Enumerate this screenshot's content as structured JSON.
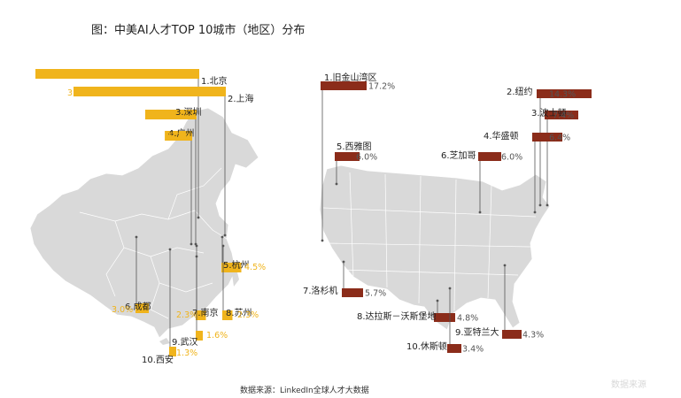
{
  "title": "图：中美AI人才TOP 10城市（地区）分布",
  "source": "数据来源：LinkedIn全球人才大数据",
  "colors": {
    "china": "#f0b41c",
    "china_text": "#f0b41c",
    "usa": "#8b2c1a",
    "usa_text": "#555555",
    "map": "#d9d9d9",
    "leader": "#555555"
  },
  "chart_data": [
    {
      "type": "bar",
      "region": "China",
      "categories": [
        "1.北京",
        "2.上海",
        "3.深圳",
        "4.广州",
        "5.杭州",
        "6.成都",
        "7.南京",
        "8.苏州",
        "9.武汉",
        "10.西安"
      ],
      "values": [
        34.1,
        31.7,
        10.7,
        5.7,
        4.5,
        3.0,
        2.3,
        2.3,
        1.6,
        1.3
      ],
      "value_labels": [
        "34.1%",
        "31.7%",
        "10.7%",
        "5.7%",
        "4.5%",
        "3.0%",
        "2.3%",
        "2.3%",
        "1.6%",
        "1.3%"
      ],
      "unit": "%"
    },
    {
      "type": "bar",
      "region": "USA",
      "categories": [
        "1.旧金山湾区",
        "2.纽约",
        "3.波士顿",
        "4.华盛顿",
        "5.西雅图",
        "6.芝加哥",
        "7.洛杉机",
        "8.达拉斯－沃斯堡地",
        "9.亚特兰大",
        "10.休斯顿"
      ],
      "values": [
        17.2,
        14.3,
        7.4,
        6.4,
        6.0,
        6.0,
        5.7,
        4.8,
        4.3,
        3.4
      ],
      "value_labels": [
        "17.2%",
        "14.3%",
        "7.4%",
        "6.4%",
        "6.0%",
        "6.0%",
        "5.7%",
        "4.8%",
        "4.3%",
        "3.4%"
      ],
      "unit": "%"
    }
  ],
  "watermark_text": "数据来源"
}
